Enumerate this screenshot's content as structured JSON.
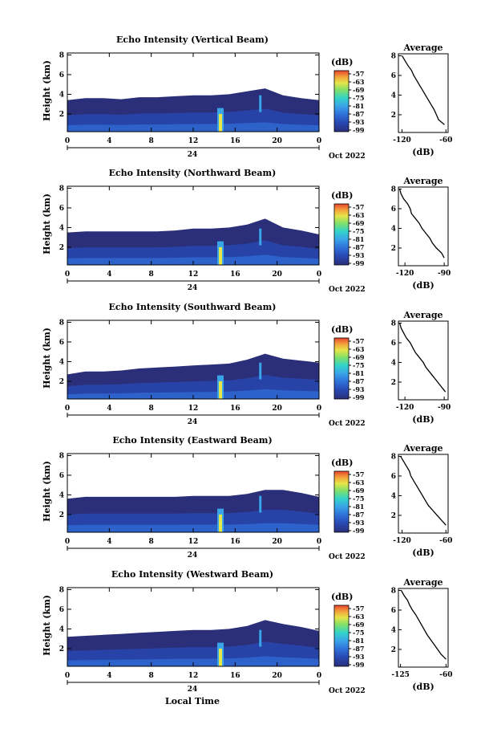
{
  "chart_data": [
    {
      "type": "heatmap",
      "title": "Echo Intensity (Vertical Beam)",
      "ylabel": "Height (km)",
      "x_ticks": [
        "0",
        "4",
        "8",
        "12",
        "16",
        "20",
        "0"
      ],
      "y_ticks": [
        "2",
        "4",
        "6",
        "8"
      ],
      "xlim": [
        0,
        24
      ],
      "ylim": [
        0.2,
        8.2
      ],
      "day_label": "24",
      "date_label": "Oct 2022",
      "unit": "(dB)",
      "colorbar_ticks": [
        "-57",
        "-63",
        "-69",
        "-75",
        "-81",
        "-87",
        "-93",
        "-99"
      ],
      "echo_top_km": [
        3.4,
        3.6,
        3.6,
        3.5,
        3.7,
        3.7,
        3.8,
        3.9,
        3.9,
        4.0,
        4.3,
        4.6,
        3.9,
        3.6,
        3.4
      ],
      "average": {
        "title": "Average",
        "xlabel": "(dB)",
        "x_ticks": [
          "-120",
          "-60"
        ],
        "y_ticks": [
          "2",
          "4",
          "6",
          "8"
        ],
        "xlim": [
          -125,
          -57
        ],
        "ylim": [
          0.2,
          8.2
        ],
        "profile_height_km": [
          1.0,
          1.5,
          2.0,
          2.5,
          3.0,
          3.5,
          4.0,
          4.5,
          5.0,
          5.5,
          6.0,
          6.5,
          7.0,
          7.5,
          8.0
        ],
        "profile_db": [
          -62,
          -70,
          -73,
          -76,
          -80,
          -84,
          -88,
          -92,
          -96,
          -100,
          -104,
          -107,
          -112,
          -116,
          -120
        ]
      }
    },
    {
      "type": "heatmap",
      "title": "Echo Intensity (Northward Beam)",
      "ylabel": "Height (km)",
      "x_ticks": [
        "0",
        "4",
        "8",
        "12",
        "16",
        "20",
        "0"
      ],
      "y_ticks": [
        "2",
        "4",
        "6",
        "8"
      ],
      "xlim": [
        0,
        24
      ],
      "ylim": [
        0.2,
        8.2
      ],
      "day_label": "24",
      "date_label": "Oct 2022",
      "unit": "(dB)",
      "colorbar_ticks": [
        "-57",
        "-63",
        "-69",
        "-75",
        "-81",
        "-87",
        "-93",
        "-99"
      ],
      "echo_top_km": [
        3.5,
        3.6,
        3.6,
        3.6,
        3.6,
        3.6,
        3.7,
        3.9,
        3.9,
        4.0,
        4.3,
        4.9,
        4.0,
        3.7,
        3.3
      ],
      "average": {
        "title": "Average",
        "xlabel": "(dB)",
        "x_ticks": [
          "-120",
          "-90"
        ],
        "y_ticks": [
          "2",
          "4",
          "6",
          "8"
        ],
        "xlim": [
          -125,
          -87
        ],
        "ylim": [
          0.2,
          8.2
        ],
        "profile_height_km": [
          1.0,
          1.5,
          2.0,
          2.5,
          3.0,
          3.5,
          4.0,
          4.5,
          5.0,
          5.5,
          6.0,
          6.5,
          7.0,
          7.5,
          8.0
        ],
        "profile_db": [
          -90,
          -92,
          -96,
          -99,
          -101,
          -104,
          -107,
          -109,
          -112,
          -115,
          -116,
          -118,
          -121,
          -123,
          -124
        ]
      }
    },
    {
      "type": "heatmap",
      "title": "Echo Intensity (Southward Beam)",
      "ylabel": "Height (km)",
      "x_ticks": [
        "0",
        "4",
        "8",
        "12",
        "16",
        "20",
        "0"
      ],
      "y_ticks": [
        "2",
        "4",
        "6",
        "8"
      ],
      "xlim": [
        0,
        24
      ],
      "ylim": [
        0.2,
        8.2
      ],
      "day_label": "24",
      "date_label": "Oct 2022",
      "unit": "(dB)",
      "colorbar_ticks": [
        "-57",
        "-63",
        "-69",
        "-75",
        "-81",
        "-87",
        "-93",
        "-99"
      ],
      "echo_top_km": [
        2.7,
        3.0,
        3.0,
        3.1,
        3.3,
        3.4,
        3.5,
        3.6,
        3.7,
        3.8,
        4.2,
        4.8,
        4.3,
        4.1,
        3.9
      ],
      "average": {
        "title": "Average",
        "xlabel": "(dB)",
        "x_ticks": [
          "-120",
          "-90"
        ],
        "y_ticks": [
          "2",
          "4",
          "6",
          "8"
        ],
        "xlim": [
          -125,
          -87
        ],
        "ylim": [
          0.2,
          8.2
        ],
        "profile_height_km": [
          1.0,
          1.5,
          2.0,
          2.5,
          3.0,
          3.5,
          4.0,
          4.5,
          5.0,
          5.5,
          6.0,
          6.5,
          7.0,
          7.5,
          8.0
        ],
        "profile_db": [
          -89,
          -92,
          -95,
          -98,
          -101,
          -104,
          -106,
          -109,
          -112,
          -114,
          -116,
          -119,
          -121,
          -123,
          -124
        ]
      }
    },
    {
      "type": "heatmap",
      "title": "Echo Intensity (Eastward Beam)",
      "ylabel": "Height (km)",
      "x_ticks": [
        "0",
        "4",
        "8",
        "12",
        "16",
        "20",
        "0"
      ],
      "y_ticks": [
        "2",
        "4",
        "6",
        "8"
      ],
      "xlim": [
        0,
        24
      ],
      "ylim": [
        0.2,
        8.2
      ],
      "day_label": "24",
      "date_label": "Oct 2022",
      "unit": "(dB)",
      "colorbar_ticks": [
        "-57",
        "-63",
        "-69",
        "-75",
        "-81",
        "-87",
        "-93",
        "-99"
      ],
      "echo_top_km": [
        3.6,
        3.8,
        3.8,
        3.8,
        3.8,
        3.8,
        3.8,
        3.9,
        3.9,
        3.9,
        4.1,
        4.5,
        4.5,
        4.2,
        3.8
      ],
      "average": {
        "title": "Average",
        "xlabel": "(dB)",
        "x_ticks": [
          "-120",
          "-60"
        ],
        "y_ticks": [
          "2",
          "4",
          "6",
          "8"
        ],
        "xlim": [
          -125,
          -57
        ],
        "ylim": [
          0.2,
          8.2
        ],
        "profile_height_km": [
          1.0,
          1.5,
          2.0,
          2.5,
          3.0,
          3.5,
          4.0,
          4.5,
          5.0,
          5.5,
          6.0,
          6.5,
          7.0,
          7.5,
          8.0
        ],
        "profile_db": [
          -60,
          -66,
          -72,
          -78,
          -84,
          -88,
          -92,
          -96,
          -100,
          -104,
          -108,
          -110,
          -114,
          -118,
          -122
        ]
      }
    },
    {
      "type": "heatmap",
      "title": "Echo Intensity (Westward Beam)",
      "ylabel": "Height (km)",
      "x_ticks": [
        "0",
        "4",
        "8",
        "12",
        "16",
        "20",
        "0"
      ],
      "y_ticks": [
        "2",
        "4",
        "6",
        "8"
      ],
      "xlim": [
        0,
        24
      ],
      "ylim": [
        0.2,
        8.2
      ],
      "day_label": "24",
      "date_label": "Oct 2022",
      "xlabel": "Local Time",
      "unit": "(dB)",
      "colorbar_ticks": [
        "-57",
        "-63",
        "-69",
        "-75",
        "-81",
        "-87",
        "-93",
        "-99"
      ],
      "echo_top_km": [
        3.2,
        3.3,
        3.4,
        3.5,
        3.6,
        3.7,
        3.8,
        3.9,
        3.9,
        4.0,
        4.3,
        4.9,
        4.5,
        4.2,
        3.8
      ],
      "average": {
        "title": "Average",
        "xlabel": "(dB)",
        "x_ticks": [
          "-125",
          "-60"
        ],
        "y_ticks": [
          "2",
          "4",
          "6",
          "8"
        ],
        "xlim": [
          -128,
          -57
        ],
        "ylim": [
          0.2,
          8.2
        ],
        "profile_height_km": [
          1.0,
          1.5,
          2.0,
          2.5,
          3.0,
          3.5,
          4.0,
          4.5,
          5.0,
          5.5,
          6.0,
          6.5,
          7.0,
          7.5,
          8.0
        ],
        "profile_db": [
          -60,
          -67,
          -72,
          -77,
          -82,
          -87,
          -91,
          -95,
          -99,
          -103,
          -108,
          -112,
          -115,
          -120,
          -124
        ]
      }
    }
  ],
  "colors": {
    "low": "#2b2f7a",
    "scale": [
      "#2b2f7a",
      "#2846b0",
      "#2f6fd8",
      "#3aa4e8",
      "#33d3c9",
      "#7ee06a",
      "#e6e54a",
      "#f3a23b",
      "#e9442f"
    ]
  }
}
